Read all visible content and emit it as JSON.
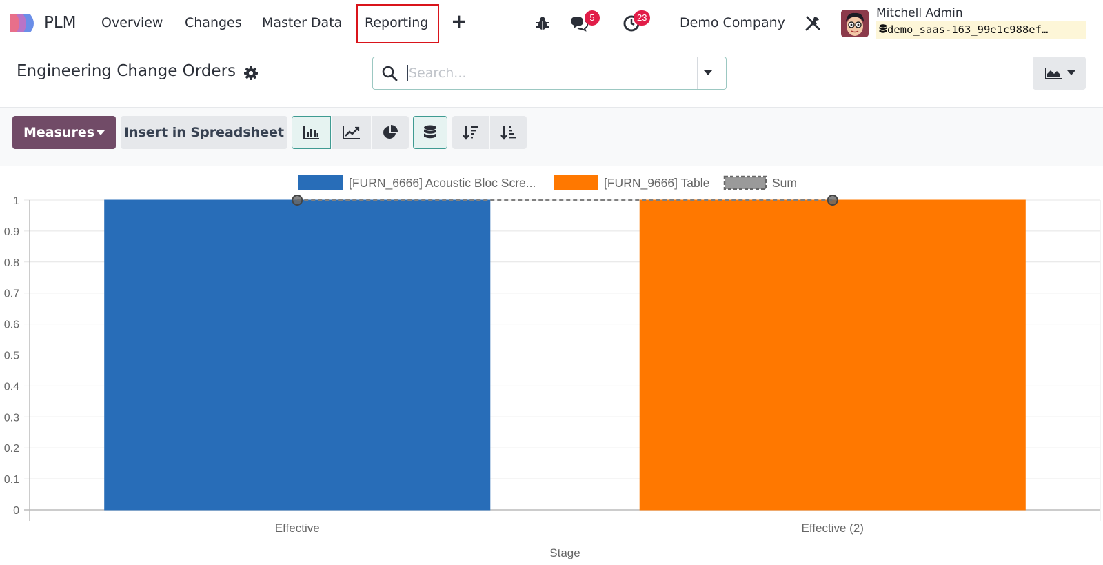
{
  "navbar": {
    "app_name": "PLM",
    "menu": [
      "Overview",
      "Changes",
      "Master Data",
      "Reporting"
    ],
    "active_menu": "Reporting",
    "messages_count": "5",
    "activities_count": "23",
    "company": "Demo Company",
    "user_name": "Mitchell Admin",
    "database": "demo_saas-163_99e1c988ef…"
  },
  "control_panel": {
    "title": "Engineering Change Orders",
    "search_placeholder": "Search..."
  },
  "toolbar": {
    "measures_label": "Measures",
    "insert_label": "Insert in Spreadsheet"
  },
  "colors": {
    "primary": "#714b67",
    "series_blue": "#286db8",
    "series_orange": "#ff7800",
    "sum_gray": "#808080"
  },
  "chart_data": {
    "type": "bar",
    "categories": [
      "Effective",
      "Effective (2)"
    ],
    "series": [
      {
        "name": "[FURN_6666] Acoustic Bloc Scre...",
        "values": [
          1,
          0
        ],
        "color": "#286db8"
      },
      {
        "name": "[FURN_9666] Table",
        "values": [
          0,
          1
        ],
        "color": "#ff7800"
      },
      {
        "name": "Sum",
        "values": [
          1,
          1
        ],
        "color": "#808080",
        "style": "dashed-line"
      }
    ],
    "xlabel": "Stage",
    "ylabel": "",
    "ylim": [
      0,
      1
    ],
    "yticks": [
      "0",
      "0.1",
      "0.2",
      "0.3",
      "0.4",
      "0.5",
      "0.6",
      "0.7",
      "0.8",
      "0.9",
      "1"
    ],
    "grid": true,
    "legend_position": "top"
  }
}
